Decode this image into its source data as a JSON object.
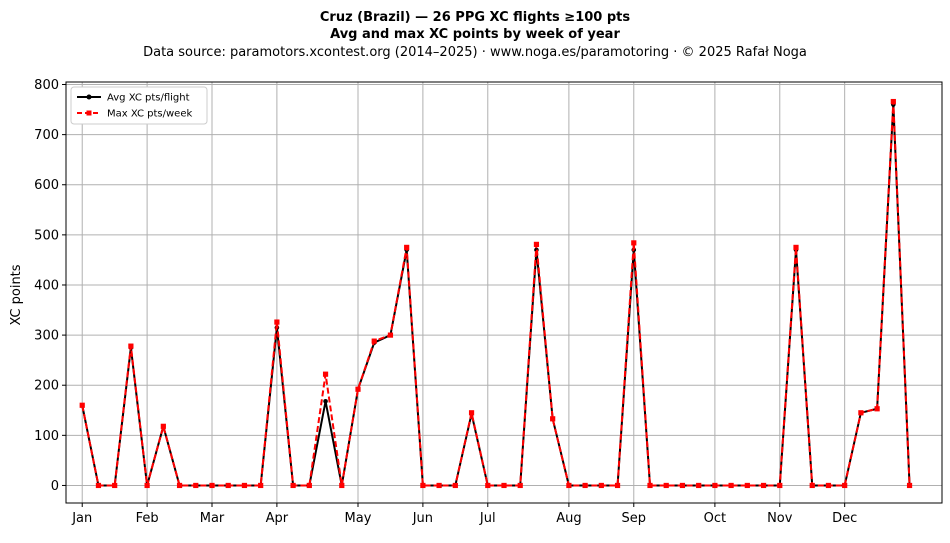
{
  "chart_data": {
    "type": "line",
    "title": "Cruz (Brazil)  —  26 PPG XC flights ≥100 pts",
    "subtitle": "Avg and max XC points by week of year",
    "source": "Data source: paramotors.xcontest.org (2014–2025)  ·  www.noga.es/paramotoring  ·  © 2025 Rafał Noga",
    "xlabel": "",
    "ylabel": "XC points",
    "ylim": [
      -35,
      805
    ],
    "xlim": [
      0,
      54
    ],
    "yticks": [
      0,
      100,
      200,
      300,
      400,
      500,
      600,
      700,
      800
    ],
    "xticks": [
      {
        "label": "Jan",
        "x": 1
      },
      {
        "label": "Feb",
        "x": 5
      },
      {
        "label": "Mar",
        "x": 9
      },
      {
        "label": "Apr",
        "x": 13
      },
      {
        "label": "May",
        "x": 18
      },
      {
        "label": "Jun",
        "x": 22
      },
      {
        "label": "Jul",
        "x": 26
      },
      {
        "label": "Aug",
        "x": 31
      },
      {
        "label": "Sep",
        "x": 35
      },
      {
        "label": "Oct",
        "x": 40
      },
      {
        "label": "Nov",
        "x": 44
      },
      {
        "label": "Dec",
        "x": 48
      }
    ],
    "grid": true,
    "legend_position": "top-left",
    "x": [
      1,
      2,
      3,
      4,
      5,
      6,
      7,
      8,
      9,
      10,
      11,
      12,
      13,
      14,
      15,
      16,
      17,
      18,
      19,
      20,
      21,
      22,
      23,
      24,
      25,
      26,
      27,
      28,
      29,
      30,
      31,
      32,
      33,
      34,
      35,
      36,
      37,
      38,
      39,
      40,
      41,
      42,
      43,
      44,
      45,
      46,
      47,
      48,
      49,
      50,
      51,
      52
    ],
    "series": [
      {
        "name": "Avg XC pts/flight",
        "color": "#000000",
        "style": "solid",
        "marker": "circle",
        "values": [
          160,
          0,
          0,
          275,
          0,
          118,
          0,
          0,
          0,
          0,
          0,
          0,
          315,
          0,
          0,
          168,
          0,
          192,
          285,
          300,
          470,
          0,
          0,
          0,
          143,
          0,
          0,
          0,
          470,
          133,
          0,
          0,
          0,
          0,
          470,
          0,
          0,
          0,
          0,
          0,
          0,
          0,
          0,
          0,
          470,
          0,
          0,
          0,
          145,
          153,
          760,
          0
        ]
      },
      {
        "name": "Max XC pts/week",
        "color": "#ff0000",
        "style": "dashed",
        "marker": "square",
        "values": [
          160,
          0,
          0,
          278,
          0,
          118,
          0,
          0,
          0,
          0,
          0,
          0,
          326,
          0,
          0,
          222,
          0,
          192,
          288,
          300,
          475,
          0,
          0,
          0,
          145,
          0,
          0,
          0,
          481,
          133,
          0,
          0,
          0,
          0,
          484,
          0,
          0,
          0,
          0,
          0,
          0,
          0,
          0,
          0,
          475,
          0,
          0,
          0,
          145,
          153,
          766,
          0
        ]
      }
    ]
  }
}
